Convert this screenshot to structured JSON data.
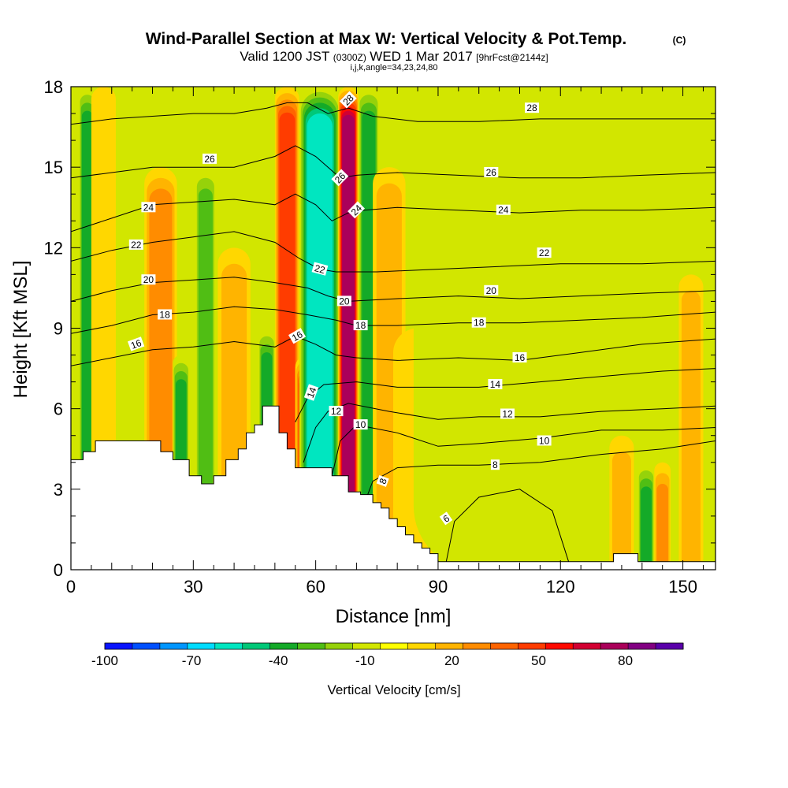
{
  "chart_data": {
    "type": "heatmap",
    "title": "Wind-Parallel Section at Max W: Vertical Velocity & Pot.Temp.",
    "title_mark": "(C)",
    "subtitle": {
      "valid": "Valid 1200 JST",
      "utc": "(0300Z)",
      "date": "WED 1 Mar 2017",
      "fcst": "[9hrFcst@2144z]"
    },
    "subtitle2": "i,j,k,angle=34,23,24,80",
    "xlabel": "Distance [nm]",
    "ylabel": "Height [Kft MSL]",
    "xlim": [
      0,
      158
    ],
    "ylim": [
      0,
      18
    ],
    "x_ticks": [
      "0",
      "30",
      "60",
      "90",
      "120",
      "150"
    ],
    "y_ticks": [
      "0",
      "3",
      "6",
      "9",
      "12",
      "15",
      "18"
    ],
    "colorbar": {
      "label": "Vertical Velocity [cm/s]",
      "range": [
        -100,
        100
      ],
      "tick_labels": [
        "-100",
        "-70",
        "-40",
        "-10",
        "20",
        "50",
        "80"
      ],
      "colors": [
        "#0a14ff",
        "#0050ff",
        "#0096ff",
        "#00dcff",
        "#00e6c0",
        "#00c878",
        "#14aa28",
        "#50be14",
        "#96d20a",
        "#d2e600",
        "#ffff00",
        "#ffd700",
        "#ffb400",
        "#ff8c00",
        "#ff6400",
        "#ff3c00",
        "#ff0a00",
        "#d20032",
        "#aa005a",
        "#820082",
        "#5a00aa"
      ]
    },
    "velocity_bands": [
      {
        "x": 4,
        "w": 2,
        "v": -35,
        "ztop": 18
      },
      {
        "x": 8,
        "w": 3,
        "v": 12,
        "ztop": 18
      },
      {
        "x": 22,
        "w": 4,
        "v": 25,
        "ztop": 15
      },
      {
        "x": 27,
        "w": 2,
        "v": -40,
        "ztop": 8
      },
      {
        "x": 33,
        "w": 2.5,
        "v": -25,
        "ztop": 15
      },
      {
        "x": 40,
        "w": 4,
        "v": 15,
        "ztop": 12
      },
      {
        "x": 48,
        "w": 2,
        "v": -40,
        "ztop": 9
      },
      {
        "x": 53,
        "w": 3,
        "v": 45,
        "ztop": 18
      },
      {
        "x": 58,
        "w": 3,
        "v": 55,
        "ztop": 8
      },
      {
        "x": 61,
        "w": 5,
        "v": -60,
        "ztop": 18
      },
      {
        "x": 68,
        "w": 2.5,
        "v": 75,
        "ztop": 18
      },
      {
        "x": 73,
        "w": 2.5,
        "v": -40,
        "ztop": 18
      },
      {
        "x": 78,
        "w": 4,
        "v": 18,
        "ztop": 15
      },
      {
        "x": 85,
        "w": 6,
        "v": 10,
        "ztop": 9
      },
      {
        "x": 100,
        "w": 16,
        "v": -6,
        "ztop": 18
      },
      {
        "x": 135,
        "w": 3,
        "v": 18,
        "ztop": 5
      },
      {
        "x": 141,
        "w": 2,
        "v": -40,
        "ztop": 4
      },
      {
        "x": 145,
        "w": 2,
        "v": 30,
        "ztop": 4
      },
      {
        "x": 152,
        "w": 3,
        "v": 20,
        "ztop": 11
      }
    ],
    "terrain": {
      "x": [
        0,
        3,
        3,
        6,
        6,
        22,
        22,
        25,
        25,
        29,
        29,
        32,
        32,
        35,
        35,
        38,
        38,
        41,
        41,
        43,
        43,
        45,
        45,
        47,
        47,
        51,
        51,
        53,
        53,
        55,
        55,
        64,
        64,
        68,
        68,
        71,
        71,
        74,
        74,
        76,
        76,
        78,
        78,
        80,
        80,
        82,
        82,
        84,
        84,
        86,
        86,
        88,
        88,
        90,
        90,
        92,
        92,
        133,
        133,
        139,
        139,
        158
      ],
      "z": [
        4.1,
        4.1,
        4.4,
        4.4,
        4.8,
        4.8,
        4.4,
        4.4,
        4.1,
        4.1,
        3.5,
        3.5,
        3.2,
        3.2,
        3.5,
        3.5,
        4.1,
        4.1,
        4.5,
        4.5,
        5.1,
        5.1,
        5.4,
        5.4,
        6.1,
        6.1,
        5.1,
        5.1,
        4.5,
        4.5,
        3.8,
        3.8,
        3.5,
        3.5,
        2.9,
        2.9,
        2.8,
        2.8,
        2.5,
        2.5,
        2.3,
        2.3,
        1.9,
        1.9,
        1.6,
        1.6,
        1.3,
        1.3,
        1.0,
        1.0,
        0.8,
        0.8,
        0.6,
        0.6,
        0.3,
        0.3,
        0.3,
        0.3,
        0.6,
        0.6,
        0.3,
        0.3
      ]
    },
    "theta_contours": [
      {
        "value": 6,
        "label_x": 92,
        "label_z": 1.9,
        "pts": [
          [
            92,
            0.3
          ],
          [
            94,
            1.8
          ],
          [
            100,
            2.7
          ],
          [
            110,
            3.0
          ],
          [
            118,
            2.2
          ],
          [
            122,
            0.3
          ]
        ]
      },
      {
        "value": 8,
        "label_x": 76,
        "label_z": 3.2,
        "pts": [
          [
            72,
            2.5
          ],
          [
            74,
            3.3
          ],
          [
            80,
            3.8
          ],
          [
            90,
            3.9
          ],
          [
            100,
            3.9
          ],
          [
            115,
            4.0
          ],
          [
            130,
            4.3
          ],
          [
            145,
            4.5
          ],
          [
            158,
            4.8
          ]
        ]
      },
      {
        "value": 10,
        "label_x": 71,
        "label_z": 5.4,
        "pts": [
          [
            64,
            3.5
          ],
          [
            66,
            4.8
          ],
          [
            70,
            5.4
          ],
          [
            80,
            5.1
          ],
          [
            90,
            4.6
          ],
          [
            100,
            4.7
          ],
          [
            115,
            4.9
          ],
          [
            130,
            5.2
          ],
          [
            145,
            5.2
          ],
          [
            158,
            5.3
          ]
        ]
      },
      {
        "value": 12,
        "label_x": 65,
        "label_z": 5.9,
        "pts": [
          [
            57,
            4.0
          ],
          [
            60,
            5.3
          ],
          [
            63,
            5.9
          ],
          [
            68,
            6.2
          ],
          [
            78,
            5.9
          ],
          [
            90,
            5.6
          ],
          [
            100,
            5.7
          ],
          [
            115,
            5.7
          ],
          [
            130,
            5.9
          ],
          [
            145,
            6.0
          ],
          [
            158,
            6.1
          ]
        ]
      },
      {
        "value": 14,
        "label_x": 59,
        "label_z": 6.6,
        "pts": [
          [
            55,
            5.5
          ],
          [
            58,
            6.4
          ],
          [
            62,
            6.9
          ],
          [
            70,
            7.0
          ],
          [
            80,
            6.8
          ],
          [
            90,
            6.8
          ],
          [
            100,
            6.8
          ],
          [
            115,
            7.0
          ],
          [
            130,
            7.2
          ],
          [
            145,
            7.4
          ],
          [
            158,
            7.5
          ]
        ]
      },
      {
        "value": 16,
        "label_x": 55,
        "label_z": 8.7,
        "pts": [
          [
            0,
            7.6
          ],
          [
            10,
            7.9
          ],
          [
            20,
            8.2
          ],
          [
            30,
            8.3
          ],
          [
            40,
            8.5
          ],
          [
            50,
            8.3
          ],
          [
            55,
            8.7
          ],
          [
            60,
            8.4
          ],
          [
            65,
            8.0
          ],
          [
            70,
            7.9
          ],
          [
            80,
            7.8
          ],
          [
            95,
            7.9
          ],
          [
            110,
            7.8
          ],
          [
            125,
            8.1
          ],
          [
            140,
            8.4
          ],
          [
            158,
            8.6
          ]
        ]
      },
      {
        "value": 18,
        "label_x": 70,
        "label_z": 9.1,
        "pts": [
          [
            0,
            8.8
          ],
          [
            10,
            9.1
          ],
          [
            20,
            9.5
          ],
          [
            30,
            9.6
          ],
          [
            40,
            9.8
          ],
          [
            50,
            9.7
          ],
          [
            58,
            9.5
          ],
          [
            65,
            9.3
          ],
          [
            70,
            9.1
          ],
          [
            80,
            9.1
          ],
          [
            95,
            9.2
          ],
          [
            110,
            9.2
          ],
          [
            125,
            9.3
          ],
          [
            140,
            9.4
          ],
          [
            158,
            9.6
          ]
        ]
      },
      {
        "value": 20,
        "label_x": 68,
        "label_z": 10.0,
        "pts": [
          [
            0,
            10.0
          ],
          [
            10,
            10.4
          ],
          [
            20,
            10.7
          ],
          [
            30,
            10.8
          ],
          [
            40,
            10.9
          ],
          [
            50,
            10.7
          ],
          [
            58,
            10.5
          ],
          [
            63,
            10.2
          ],
          [
            68,
            10.0
          ],
          [
            80,
            10.1
          ],
          [
            95,
            10.2
          ],
          [
            110,
            10.1
          ],
          [
            125,
            10.2
          ],
          [
            140,
            10.3
          ],
          [
            158,
            10.4
          ]
        ]
      },
      {
        "value": 22,
        "label_x": 61,
        "label_z": 11.2,
        "pts": [
          [
            0,
            11.5
          ],
          [
            10,
            11.9
          ],
          [
            20,
            12.2
          ],
          [
            30,
            12.4
          ],
          [
            40,
            12.6
          ],
          [
            50,
            12.2
          ],
          [
            56,
            11.6
          ],
          [
            61,
            11.2
          ],
          [
            65,
            11.1
          ],
          [
            75,
            11.1
          ],
          [
            90,
            11.2
          ],
          [
            105,
            11.3
          ],
          [
            120,
            11.4
          ],
          [
            140,
            11.4
          ],
          [
            158,
            11.5
          ]
        ]
      },
      {
        "value": 24,
        "label_x": 68,
        "label_z": 13.3,
        "pts": [
          [
            0,
            12.6
          ],
          [
            10,
            13.1
          ],
          [
            20,
            13.6
          ],
          [
            30,
            13.7
          ],
          [
            40,
            13.8
          ],
          [
            50,
            13.6
          ],
          [
            55,
            14.0
          ],
          [
            60,
            13.6
          ],
          [
            64,
            13.0
          ],
          [
            68,
            13.3
          ],
          [
            72,
            13.4
          ],
          [
            80,
            13.5
          ],
          [
            95,
            13.4
          ],
          [
            110,
            13.3
          ],
          [
            125,
            13.4
          ],
          [
            140,
            13.4
          ],
          [
            158,
            13.5
          ]
        ]
      },
      {
        "value": 26,
        "label_x": 66,
        "label_z": 14.6,
        "pts": [
          [
            0,
            14.6
          ],
          [
            10,
            14.8
          ],
          [
            20,
            15.0
          ],
          [
            30,
            15.0
          ],
          [
            40,
            15.0
          ],
          [
            50,
            15.4
          ],
          [
            55,
            15.8
          ],
          [
            60,
            15.4
          ],
          [
            66,
            14.6
          ],
          [
            70,
            14.7
          ],
          [
            80,
            14.8
          ],
          [
            95,
            14.7
          ],
          [
            110,
            14.6
          ],
          [
            125,
            14.6
          ],
          [
            140,
            14.7
          ],
          [
            158,
            14.8
          ]
        ]
      },
      {
        "value": 28,
        "label_x": 68,
        "label_z": 17.2,
        "pts": [
          [
            0,
            16.6
          ],
          [
            10,
            16.8
          ],
          [
            20,
            16.9
          ],
          [
            30,
            17.0
          ],
          [
            40,
            17.0
          ],
          [
            48,
            17.2
          ],
          [
            53,
            17.4
          ],
          [
            58,
            17.4
          ],
          [
            63,
            17.0
          ],
          [
            68,
            17.2
          ],
          [
            74,
            16.9
          ],
          [
            85,
            16.7
          ],
          [
            100,
            16.7
          ],
          [
            115,
            16.8
          ],
          [
            130,
            16.8
          ],
          [
            145,
            16.8
          ],
          [
            158,
            16.8
          ]
        ]
      }
    ],
    "contour_labels": [
      {
        "text": "6",
        "x": 92,
        "z": 1.9,
        "rot": -35
      },
      {
        "text": "8",
        "x": 76.5,
        "z": 3.3,
        "rot": -70
      },
      {
        "text": "10",
        "x": 71,
        "z": 5.4,
        "rot": 0
      },
      {
        "text": "12",
        "x": 65,
        "z": 5.9,
        "rot": 0
      },
      {
        "text": "14",
        "x": 59,
        "z": 6.6,
        "rot": -70
      },
      {
        "text": "16",
        "x": 55.5,
        "z": 8.7,
        "rot": -30
      },
      {
        "text": "18",
        "x": 71,
        "z": 9.1,
        "rot": 0
      },
      {
        "text": "20",
        "x": 67,
        "z": 10.0,
        "rot": 0
      },
      {
        "text": "22",
        "x": 61,
        "z": 11.2,
        "rot": 15
      },
      {
        "text": "24",
        "x": 70,
        "z": 13.4,
        "rot": -45
      },
      {
        "text": "26",
        "x": 66,
        "z": 14.6,
        "rot": -45
      },
      {
        "text": "28",
        "x": 68,
        "z": 17.5,
        "rot": -45
      },
      {
        "text": "16",
        "x": 16,
        "z": 8.4,
        "rot": -20
      },
      {
        "text": "18",
        "x": 23,
        "z": 9.5,
        "rot": 0
      },
      {
        "text": "20",
        "x": 19,
        "z": 10.8,
        "rot": 0
      },
      {
        "text": "22",
        "x": 16,
        "z": 12.1,
        "rot": 0
      },
      {
        "text": "24",
        "x": 19,
        "z": 13.5,
        "rot": 0
      },
      {
        "text": "26",
        "x": 34,
        "z": 15.3,
        "rot": 0
      },
      {
        "text": "28",
        "x": 113,
        "z": 17.2,
        "rot": 0
      },
      {
        "text": "26",
        "x": 103,
        "z": 14.8,
        "rot": 0
      },
      {
        "text": "24",
        "x": 106,
        "z": 13.4,
        "rot": 0
      },
      {
        "text": "22",
        "x": 116,
        "z": 11.8,
        "rot": 0
      },
      {
        "text": "20",
        "x": 103,
        "z": 10.4,
        "rot": 0
      },
      {
        "text": "18",
        "x": 100,
        "z": 9.2,
        "rot": 0
      },
      {
        "text": "16",
        "x": 110,
        "z": 7.9,
        "rot": 0
      },
      {
        "text": "14",
        "x": 104,
        "z": 6.9,
        "rot": 0
      },
      {
        "text": "12",
        "x": 107,
        "z": 5.8,
        "rot": 0
      },
      {
        "text": "10",
        "x": 116,
        "z": 4.8,
        "rot": 0
      },
      {
        "text": "8",
        "x": 104,
        "z": 3.9,
        "rot": 0
      }
    ],
    "grid": false
  }
}
